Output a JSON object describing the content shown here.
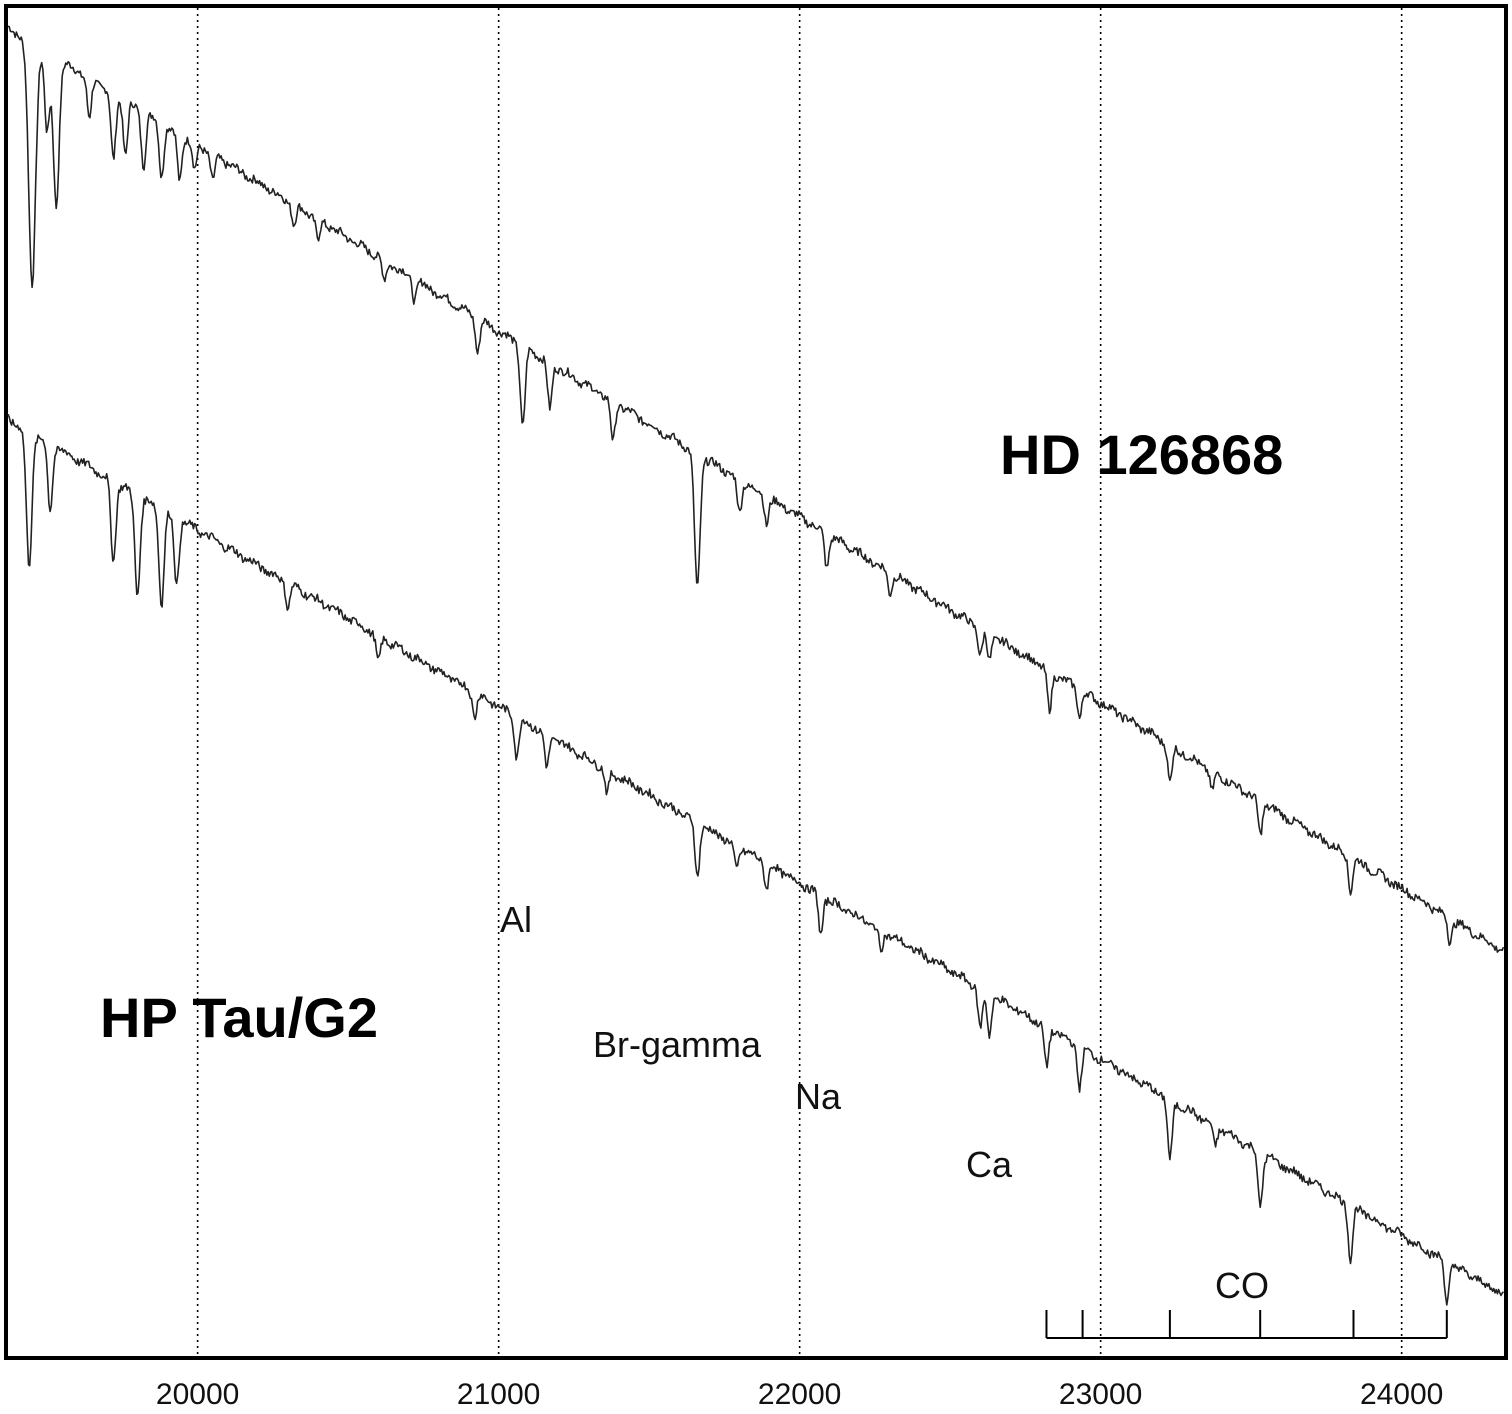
{
  "chart_data": {
    "type": "line",
    "title": "",
    "xlabel": "",
    "ylabel": "",
    "xlim": [
      19370,
      24340
    ],
    "ylim": [
      0,
      1
    ],
    "grid": "dotted vertical lines at major x ticks",
    "x_ticks": [
      20000,
      21000,
      22000,
      23000,
      24000
    ],
    "tick_labels": [
      "20000",
      "21000",
      "22000",
      "23000",
      "24000"
    ],
    "continuum": {
      "HD 126868": {
        "start": 0.985,
        "end": 0.3
      },
      "HP Tau/G2": {
        "start": 0.695,
        "end": 0.045
      }
    },
    "series": [
      {
        "name": "HD 126868",
        "absorption_lines": [
          {
            "x": 19450,
            "depth": 0.18
          },
          {
            "x": 19500,
            "depth": 0.06
          },
          {
            "x": 19530,
            "depth": 0.11
          },
          {
            "x": 19640,
            "depth": 0.03
          },
          {
            "x": 19720,
            "depth": 0.05
          },
          {
            "x": 19760,
            "depth": 0.04
          },
          {
            "x": 19820,
            "depth": 0.04
          },
          {
            "x": 19880,
            "depth": 0.04
          },
          {
            "x": 19940,
            "depth": 0.035
          },
          {
            "x": 19990,
            "depth": 0.02
          },
          {
            "x": 20050,
            "depth": 0.02
          },
          {
            "x": 20320,
            "depth": 0.015
          },
          {
            "x": 20400,
            "depth": 0.015
          },
          {
            "x": 20620,
            "depth": 0.015
          },
          {
            "x": 20720,
            "depth": 0.015
          },
          {
            "x": 20930,
            "depth": 0.025
          },
          {
            "x": 21080,
            "depth": 0.06
          },
          {
            "x": 21170,
            "depth": 0.035
          },
          {
            "x": 21380,
            "depth": 0.03
          },
          {
            "x": 21660,
            "depth": 0.1
          },
          {
            "x": 21800,
            "depth": 0.025
          },
          {
            "x": 21890,
            "depth": 0.02
          },
          {
            "x": 22090,
            "depth": 0.025
          },
          {
            "x": 22300,
            "depth": 0.015
          },
          {
            "x": 22600,
            "depth": 0.02
          },
          {
            "x": 22630,
            "depth": 0.02
          },
          {
            "x": 22830,
            "depth": 0.03
          },
          {
            "x": 22930,
            "depth": 0.02
          },
          {
            "x": 23230,
            "depth": 0.028
          },
          {
            "x": 23370,
            "depth": 0.015
          },
          {
            "x": 23530,
            "depth": 0.025
          },
          {
            "x": 23830,
            "depth": 0.025
          },
          {
            "x": 24160,
            "depth": 0.018
          }
        ]
      },
      {
        "name": "HP Tau/G2",
        "absorption_lines": [
          {
            "x": 19440,
            "depth": 0.1
          },
          {
            "x": 19510,
            "depth": 0.05
          },
          {
            "x": 19720,
            "depth": 0.06
          },
          {
            "x": 19800,
            "depth": 0.075
          },
          {
            "x": 19880,
            "depth": 0.07
          },
          {
            "x": 19930,
            "depth": 0.05
          },
          {
            "x": 20300,
            "depth": 0.018
          },
          {
            "x": 20600,
            "depth": 0.02
          },
          {
            "x": 20920,
            "depth": 0.018
          },
          {
            "x": 21060,
            "depth": 0.03
          },
          {
            "x": 21160,
            "depth": 0.025
          },
          {
            "x": 21360,
            "depth": 0.018
          },
          {
            "x": 21660,
            "depth": 0.04
          },
          {
            "x": 21790,
            "depth": 0.018
          },
          {
            "x": 21890,
            "depth": 0.018
          },
          {
            "x": 22070,
            "depth": 0.03
          },
          {
            "x": 22270,
            "depth": 0.015
          },
          {
            "x": 22600,
            "depth": 0.03
          },
          {
            "x": 22630,
            "depth": 0.03
          },
          {
            "x": 22820,
            "depth": 0.03
          },
          {
            "x": 22930,
            "depth": 0.03
          },
          {
            "x": 23230,
            "depth": 0.045
          },
          {
            "x": 23380,
            "depth": 0.015
          },
          {
            "x": 23530,
            "depth": 0.04
          },
          {
            "x": 23830,
            "depth": 0.04
          },
          {
            "x": 24150,
            "depth": 0.03
          }
        ]
      }
    ],
    "annotations": [
      {
        "text": "Al",
        "x": 21080
      },
      {
        "text": "Br-gamma",
        "x": 21660
      },
      {
        "text": "Na",
        "x": 22090
      },
      {
        "text": "Ca",
        "x": 22630
      },
      {
        "text": "CO",
        "x": 23500
      }
    ],
    "co_bandheads": [
      22820,
      22940,
      23230,
      23530,
      23840,
      24150
    ],
    "series_labels": [
      "HD 126868",
      "HP Tau/G2"
    ]
  }
}
